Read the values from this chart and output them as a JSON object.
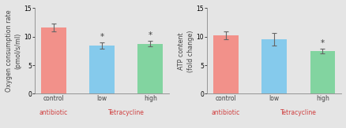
{
  "chart1": {
    "ylabel": "Oxygen consumption rate\n(pmol/s/ml)",
    "categories": [
      "control",
      "low",
      "high"
    ],
    "values": [
      11.6,
      8.4,
      8.8
    ],
    "errors": [
      0.7,
      0.55,
      0.45
    ],
    "bar_colors": [
      "#F2918A",
      "#85CAEC",
      "#82D4A0"
    ],
    "ylim": [
      0,
      15
    ],
    "yticks": [
      0,
      5,
      10,
      15
    ],
    "significance": [
      false,
      true,
      true
    ]
  },
  "chart2": {
    "ylabel": "ATP content\n(fold change)",
    "categories": [
      "control",
      "low",
      "high"
    ],
    "values": [
      10.2,
      9.5,
      7.5
    ],
    "errors": [
      0.7,
      1.1,
      0.45
    ],
    "bar_colors": [
      "#F2918A",
      "#85CAEC",
      "#82D4A0"
    ],
    "ylim": [
      0,
      15
    ],
    "yticks": [
      0,
      5,
      10,
      15
    ],
    "significance": [
      false,
      false,
      true
    ]
  },
  "background_color": "#E5E5E5",
  "axes_background": "#E5E5E5",
  "bar_width": 0.52,
  "tick_fontsize": 5.5,
  "asterisk_fontsize": 7.5,
  "ylabel_fontsize": 5.8,
  "xlabel_fontsize": 5.5,
  "red_color": "#D04040",
  "dark_color": "#444444",
  "error_color": "#666666"
}
